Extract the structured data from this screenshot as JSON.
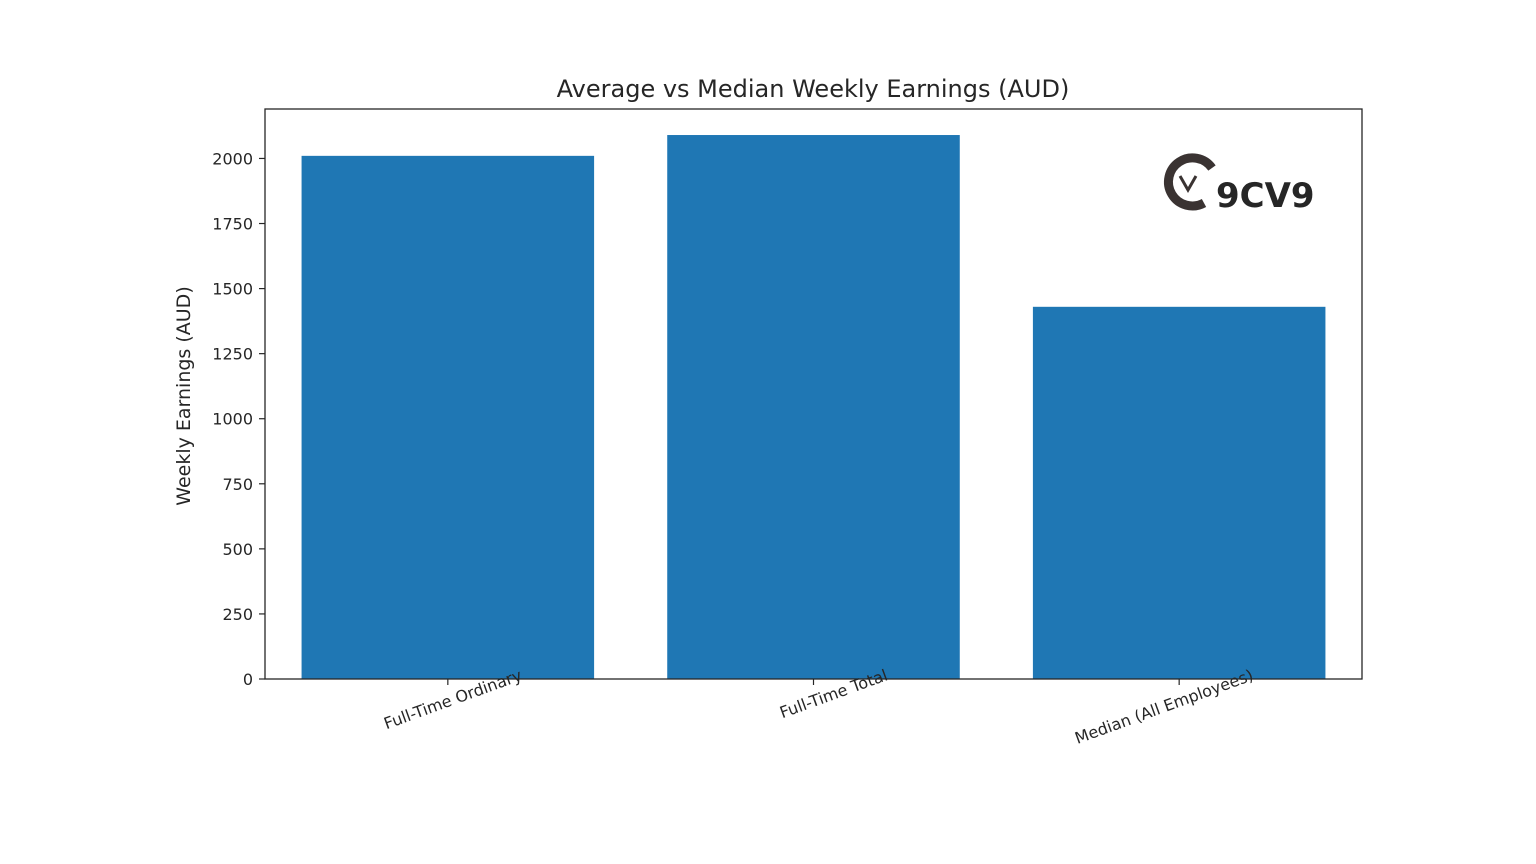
{
  "chart_data": {
    "type": "bar",
    "title": "Average vs Median Weekly Earnings (AUD)",
    "xlabel": "",
    "ylabel": "Weekly Earnings (AUD)",
    "categories": [
      "Full-Time Ordinary",
      "Full-Time Total",
      "Median (All Employees)"
    ],
    "values": [
      2010,
      2090,
      1430
    ],
    "ylim": [
      0,
      2190
    ],
    "yticks": [
      0,
      250,
      500,
      750,
      1000,
      1250,
      1500,
      1750,
      2000
    ],
    "bar_color": "#1f77b4",
    "grid": false,
    "legend": "none"
  },
  "watermark": {
    "text": "9CV9",
    "icon": "9cv9-logo-icon",
    "color": "#3a3332"
  }
}
